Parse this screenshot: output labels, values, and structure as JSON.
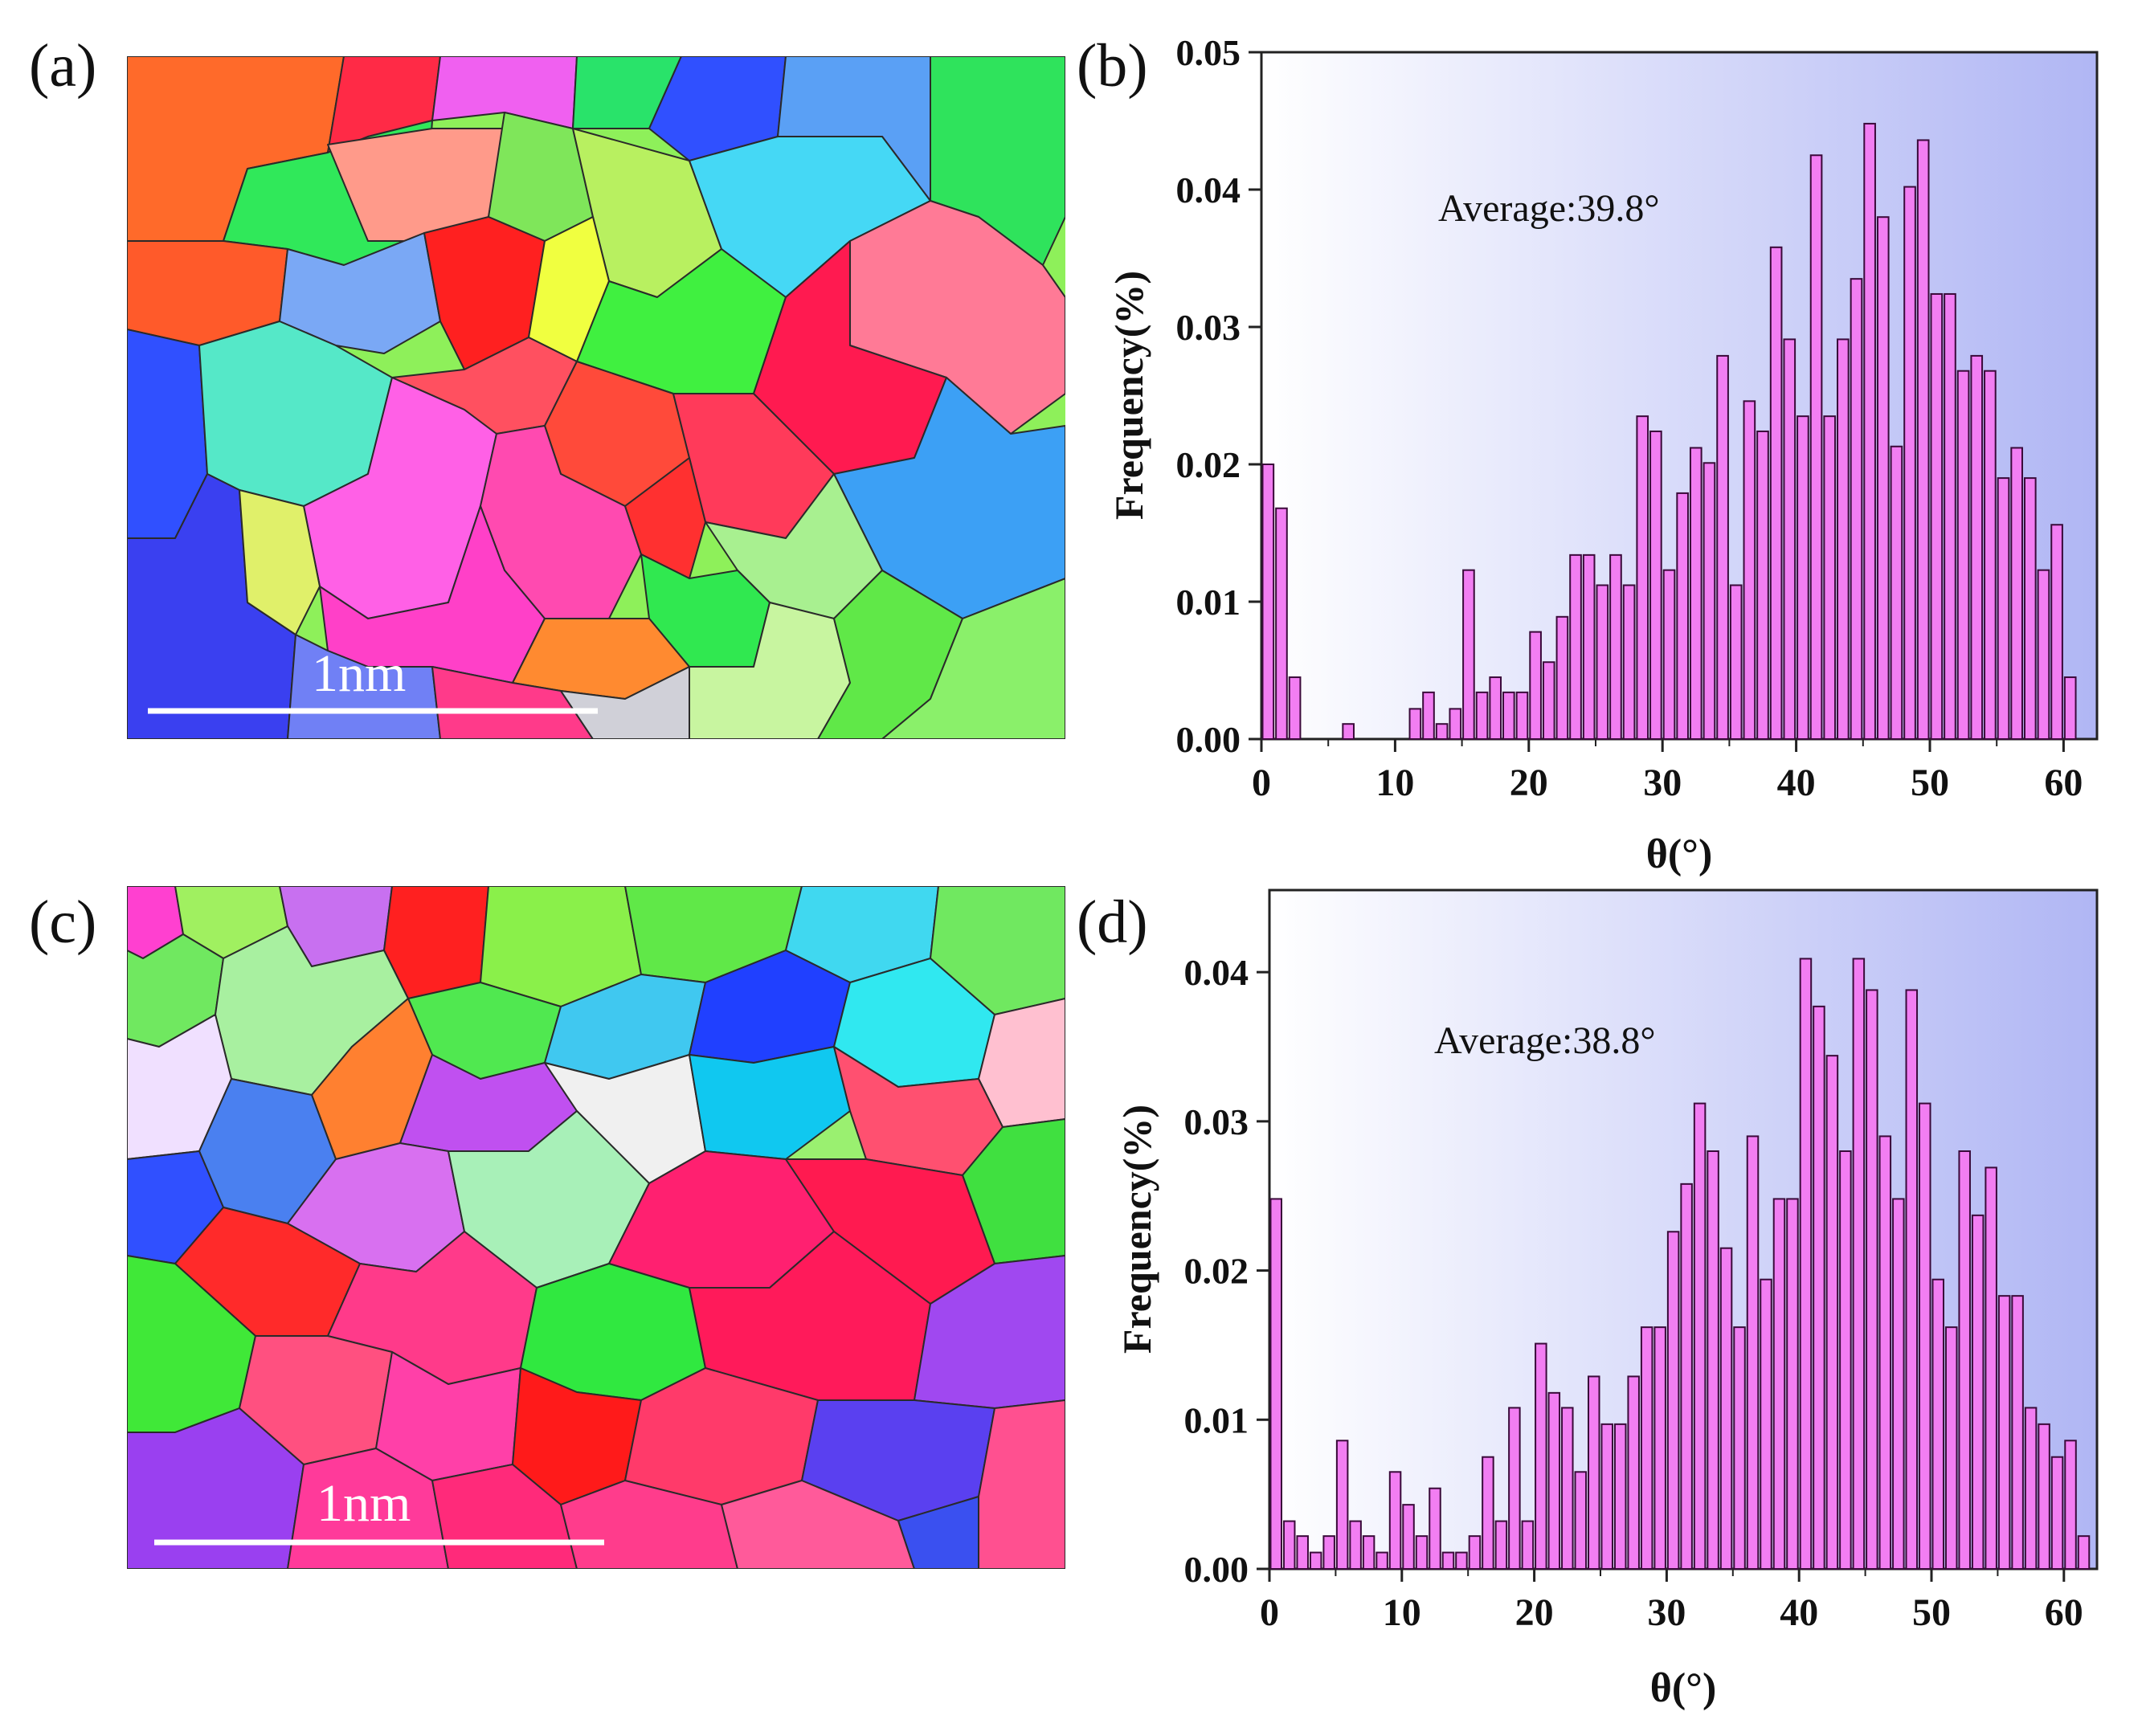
{
  "panels": {
    "a": {
      "label": "(a)",
      "scale_label": "1nm"
    },
    "b": {
      "label": "(b)"
    },
    "c": {
      "label": "(c)",
      "scale_label": "1nm"
    },
    "d": {
      "label": "(d)"
    }
  },
  "chart_data": [
    {
      "id": "b",
      "type": "bar",
      "xlabel": "θ(°)",
      "ylabel": "Frequency(%)",
      "annotation": "Average:39.8°",
      "xlim": [
        0,
        62.5
      ],
      "ylim": [
        0,
        0.05
      ],
      "xticks": [
        0,
        10,
        20,
        30,
        40,
        50,
        60
      ],
      "yticks": [
        0.0,
        0.01,
        0.02,
        0.03,
        0.04,
        0.05
      ],
      "bar_width": 0.82,
      "x": [
        0.5,
        1.5,
        2.5,
        3.5,
        4.5,
        5.5,
        6.5,
        7.5,
        8.5,
        9.5,
        10.5,
        11.5,
        12.5,
        13.5,
        14.5,
        15.5,
        16.5,
        17.5,
        18.5,
        19.5,
        20.5,
        21.5,
        22.5,
        23.5,
        24.5,
        25.5,
        26.5,
        27.5,
        28.5,
        29.5,
        30.5,
        31.5,
        32.5,
        33.5,
        34.5,
        35.5,
        36.5,
        37.5,
        38.5,
        39.5,
        40.5,
        41.5,
        42.5,
        43.5,
        44.5,
        45.5,
        46.5,
        47.5,
        48.5,
        49.5,
        50.5,
        51.5,
        52.5,
        53.5,
        54.5,
        55.5,
        56.5,
        57.5,
        58.5,
        59.5,
        60.5
      ],
      "values": [
        0.02,
        0.0168,
        0.0045,
        0,
        0,
        0,
        0.0011,
        0,
        0,
        0,
        0,
        0.0022,
        0.0034,
        0.0011,
        0.0022,
        0.0123,
        0.0034,
        0.0045,
        0.0034,
        0.0034,
        0.0078,
        0.0056,
        0.0089,
        0.0134,
        0.0134,
        0.0112,
        0.0134,
        0.0112,
        0.0235,
        0.0224,
        0.0123,
        0.0179,
        0.0212,
        0.0201,
        0.0279,
        0.0112,
        0.0246,
        0.0224,
        0.0358,
        0.0291,
        0.0235,
        0.0425,
        0.0235,
        0.0291,
        0.0335,
        0.0448,
        0.038,
        0.0213,
        0.0402,
        0.0436,
        0.0324,
        0.0324,
        0.0268,
        0.0279,
        0.0268,
        0.019,
        0.0212,
        0.019,
        0.0123,
        0.0156,
        0.0045
      ]
    },
    {
      "id": "d",
      "type": "bar",
      "xlabel": "θ(°)",
      "ylabel": "Frequency(%)",
      "annotation": "Average:38.8°",
      "xlim": [
        0,
        62.5
      ],
      "ylim": [
        0,
        0.0455
      ],
      "xticks": [
        0,
        10,
        20,
        30,
        40,
        50,
        60
      ],
      "yticks": [
        0.0,
        0.01,
        0.02,
        0.03,
        0.04
      ],
      "bar_width": 0.82,
      "x": [
        0.5,
        1.5,
        2.5,
        3.5,
        4.5,
        5.5,
        6.5,
        7.5,
        8.5,
        9.5,
        10.5,
        11.5,
        12.5,
        13.5,
        14.5,
        15.5,
        16.5,
        17.5,
        18.5,
        19.5,
        20.5,
        21.5,
        22.5,
        23.5,
        24.5,
        25.5,
        26.5,
        27.5,
        28.5,
        29.5,
        30.5,
        31.5,
        32.5,
        33.5,
        34.5,
        35.5,
        36.5,
        37.5,
        38.5,
        39.5,
        40.5,
        41.5,
        42.5,
        43.5,
        44.5,
        45.5,
        46.5,
        47.5,
        48.5,
        49.5,
        50.5,
        51.5,
        52.5,
        53.5,
        54.5,
        55.5,
        56.5,
        57.5,
        58.5,
        59.5,
        60.5,
        61.5
      ],
      "values": [
        0.0248,
        0.0032,
        0.0022,
        0.0011,
        0.0022,
        0.0086,
        0.0032,
        0.0022,
        0.0011,
        0.0065,
        0.0043,
        0.0022,
        0.0054,
        0.0011,
        0.0011,
        0.0022,
        0.0075,
        0.0032,
        0.0108,
        0.0032,
        0.0151,
        0.0118,
        0.0108,
        0.0065,
        0.0129,
        0.0097,
        0.0097,
        0.0129,
        0.0162,
        0.0162,
        0.0226,
        0.0258,
        0.0312,
        0.028,
        0.0215,
        0.0162,
        0.029,
        0.0194,
        0.0248,
        0.0248,
        0.0409,
        0.0377,
        0.0344,
        0.028,
        0.0409,
        0.0388,
        0.029,
        0.0248,
        0.0388,
        0.0312,
        0.0194,
        0.0162,
        0.028,
        0.0237,
        0.0269,
        0.0183,
        0.0183,
        0.0108,
        0.0097,
        0.0075,
        0.0086,
        0.0022
      ]
    }
  ]
}
